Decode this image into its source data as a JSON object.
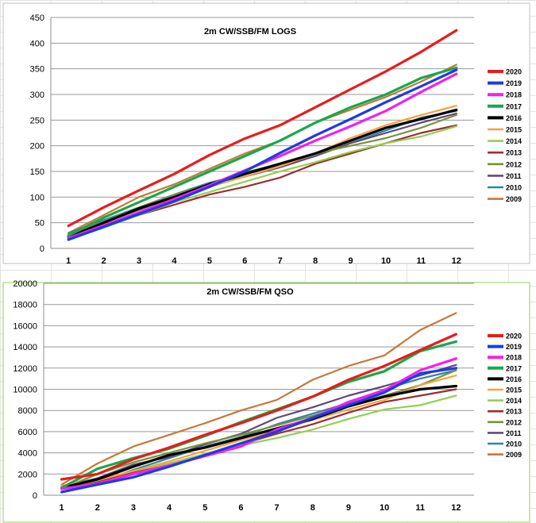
{
  "chart_data": [
    {
      "type": "line",
      "title": "2m CW/SSB/FM LOGS",
      "xlabel": "",
      "ylabel": "",
      "x": [
        1,
        2,
        3,
        4,
        5,
        6,
        7,
        8,
        9,
        10,
        11,
        12
      ],
      "ylim": [
        0,
        450
      ],
      "yticks": [
        "0",
        "50",
        "100",
        "150",
        "200",
        "250",
        "300",
        "350",
        "400",
        "450"
      ],
      "grid": true,
      "legend": "right",
      "series": [
        {
          "name": "2020",
          "color": "#e81c1c",
          "values": [
            44,
            80,
            113,
            145,
            182,
            214,
            240,
            275,
            310,
            345,
            383,
            425
          ]
        },
        {
          "name": "2019",
          "color": "#1c3ce0",
          "values": [
            17,
            42,
            67,
            92,
            120,
            150,
            186,
            220,
            252,
            285,
            316,
            348
          ]
        },
        {
          "name": "2018",
          "color": "#ee22ee",
          "values": [
            20,
            45,
            70,
            96,
            123,
            152,
            180,
            210,
            238,
            268,
            305,
            340
          ]
        },
        {
          "name": "2017",
          "color": "#18a84a",
          "values": [
            25,
            60,
            90,
            120,
            150,
            180,
            210,
            245,
            275,
            300,
            332,
            352
          ]
        },
        {
          "name": "2016",
          "color": "#000000",
          "values": [
            22,
            50,
            78,
            100,
            125,
            145,
            165,
            185,
            210,
            235,
            252,
            270
          ]
        },
        {
          "name": "2015",
          "color": "#f7a23c",
          "values": [
            22,
            45,
            70,
            95,
            120,
            140,
            160,
            185,
            215,
            240,
            260,
            278
          ]
        },
        {
          "name": "2014",
          "color": "#92d050",
          "values": [
            18,
            40,
            65,
            90,
            110,
            130,
            150,
            168,
            188,
            205,
            218,
            238
          ]
        },
        {
          "name": "2013",
          "color": "#9b2e2e",
          "values": [
            22,
            42,
            65,
            85,
            105,
            120,
            138,
            165,
            185,
            205,
            225,
            240
          ]
        },
        {
          "name": "2012",
          "color": "#76923c",
          "values": [
            28,
            52,
            80,
            105,
            125,
            148,
            165,
            185,
            200,
            215,
            235,
            260
          ]
        },
        {
          "name": "2011",
          "color": "#60497a",
          "values": [
            25,
            50,
            75,
            100,
            122,
            140,
            158,
            180,
            205,
            225,
            245,
            263
          ]
        },
        {
          "name": "2010",
          "color": "#31859c",
          "values": [
            30,
            55,
            80,
            105,
            128,
            145,
            160,
            180,
            205,
            230,
            255,
            268
          ]
        },
        {
          "name": "2009",
          "color": "#c87838",
          "values": [
            30,
            65,
            100,
            125,
            155,
            185,
            210,
            245,
            270,
            295,
            325,
            358
          ]
        }
      ]
    },
    {
      "type": "line",
      "title": "2m CW/SSB/FM QSO",
      "xlabel": "",
      "ylabel": "",
      "x": [
        1,
        2,
        3,
        4,
        5,
        6,
        7,
        8,
        9,
        10,
        11,
        12
      ],
      "ylim": [
        0,
        20000
      ],
      "yticks": [
        "0",
        "2000",
        "4000",
        "6000",
        "8000",
        "10000",
        "12000",
        "14000",
        "16000",
        "18000",
        "20000"
      ],
      "grid": true,
      "legend": "right",
      "series": [
        {
          "name": "2020",
          "color": "#e81c1c",
          "values": [
            1500,
            2000,
            3400,
            4500,
            5700,
            6800,
            8000,
            9300,
            10900,
            12200,
            13700,
            15200
          ]
        },
        {
          "name": "2019",
          "color": "#1c3ce0",
          "values": [
            300,
            1000,
            1700,
            2700,
            3800,
            4900,
            6000,
            7300,
            8500,
            9700,
            11500,
            12000
          ]
        },
        {
          "name": "2018",
          "color": "#ee22ee",
          "values": [
            600,
            1100,
            2000,
            2800,
            3700,
            4600,
            6200,
            7300,
            8800,
            9900,
            11800,
            12900
          ]
        },
        {
          "name": "2017",
          "color": "#18a84a",
          "values": [
            700,
            2500,
            3500,
            4400,
            5600,
            6900,
            8100,
            9300,
            10700,
            11700,
            13600,
            14500
          ]
        },
        {
          "name": "2016",
          "color": "#000000",
          "values": [
            700,
            1500,
            2700,
            3800,
            4500,
            5400,
            6300,
            7200,
            8400,
            9300,
            10000,
            10300
          ]
        },
        {
          "name": "2015",
          "color": "#f7a23c",
          "values": [
            900,
            1400,
            2300,
            3200,
            4200,
            5200,
            6100,
            7100,
            8100,
            9000,
            10400,
            11300
          ]
        },
        {
          "name": "2014",
          "color": "#92d050",
          "values": [
            700,
            1400,
            2300,
            3000,
            3900,
            4700,
            5400,
            6200,
            7200,
            8100,
            8500,
            9400
          ]
        },
        {
          "name": "2013",
          "color": "#9b2e2e",
          "values": [
            700,
            1300,
            2200,
            3000,
            3800,
            4800,
            5800,
            6700,
            7800,
            8800,
            9400,
            10000
          ]
        },
        {
          "name": "2012",
          "color": "#76923c",
          "values": [
            600,
            2000,
            3100,
            4000,
            4900,
            5700,
            6600,
            7500,
            8500,
            9400,
            10400,
            11800
          ]
        },
        {
          "name": "2011",
          "color": "#60497a",
          "values": [
            800,
            1600,
            2900,
            3600,
            4800,
            5800,
            7300,
            8300,
            9400,
            10300,
            11300,
            12300
          ]
        },
        {
          "name": "2010",
          "color": "#31859c",
          "values": [
            600,
            1200,
            2400,
            3500,
            4600,
            5500,
            6700,
            7700,
            8700,
            10000,
            11000,
            11800
          ]
        },
        {
          "name": "2009",
          "color": "#c87838",
          "values": [
            1000,
            3000,
            4600,
            5700,
            6800,
            8000,
            9000,
            10900,
            12200,
            13200,
            15600,
            17200
          ]
        }
      ]
    }
  ]
}
